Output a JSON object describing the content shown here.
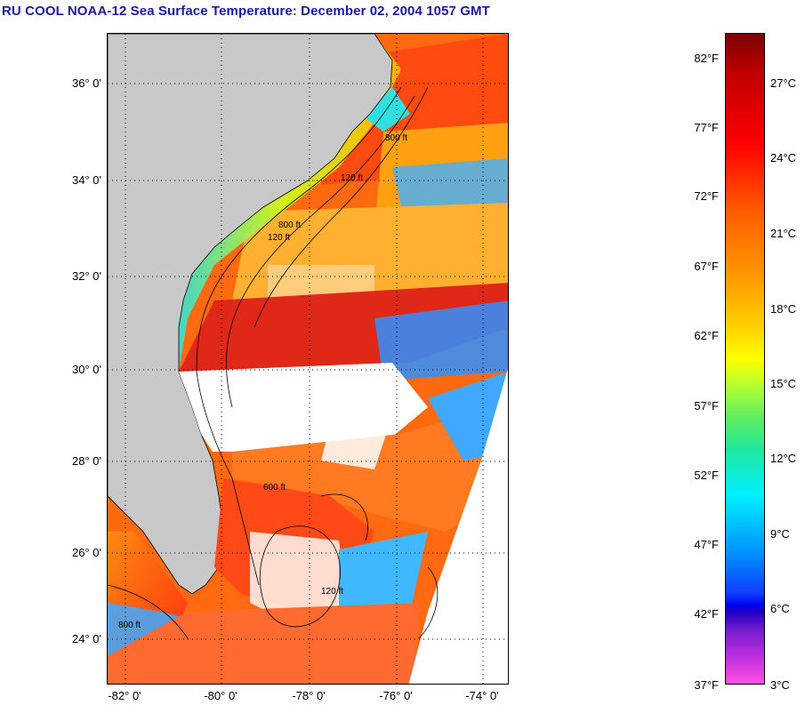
{
  "title": "RU COOL  NOAA-12  Sea Surface Temperature:  December 02, 2004 1057 GMT",
  "map": {
    "lat_labels": [
      "36° 0'",
      "34° 0'",
      "32° 0'",
      "30° 0'",
      "28° 0'",
      "26° 0'",
      "24° 0'"
    ],
    "lon_labels": [
      "-82° 0'",
      "-80° 0'",
      "-78° 0'",
      "-76° 0'",
      "-74° 0'"
    ],
    "contour_labels": [
      "800 ft",
      "120 ft",
      "800 ft",
      "120 ft",
      "600 ft",
      "120 ft",
      "800 ft"
    ],
    "colors": {
      "land": "#c8c8c8",
      "cloud": "#ffffff",
      "warm": "#ff3010",
      "hot": "#e02010",
      "cool": "#30c8ff",
      "cold": "#1050ff"
    }
  },
  "colorbar": {
    "f_labels": [
      "82°F",
      "77°F",
      "72°F",
      "67°F",
      "62°F",
      "57°F",
      "52°F",
      "47°F",
      "42°F",
      "37°F"
    ],
    "c_labels": [
      "27°C",
      "24°C",
      "21°C",
      "18°C",
      "15°C",
      "12°C",
      "9°C",
      "6°C",
      "3°C"
    ]
  }
}
